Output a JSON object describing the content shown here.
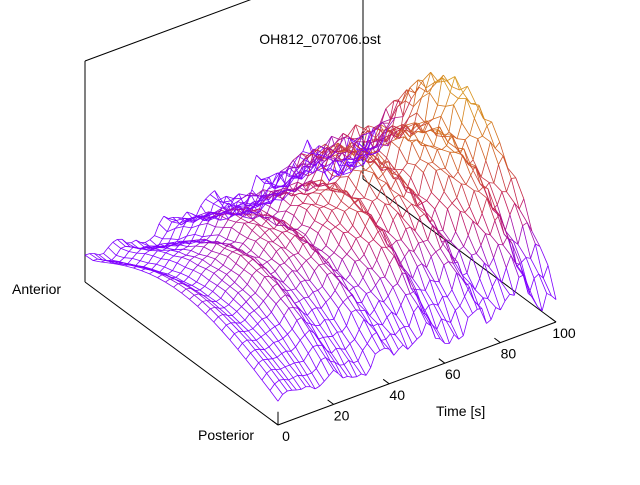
{
  "chart_data": {
    "type": "surface",
    "title": "OH812_070706.ost",
    "xlabel": "Time [s]",
    "ylabel_near": "Posterior",
    "ylabel_far": "Anterior",
    "xlim": [
      0,
      100
    ],
    "x_ticks": [
      "0",
      "20",
      "40",
      "60",
      "80",
      "100"
    ],
    "z_ticks": [],
    "grid": false,
    "colormap": [
      "#7f00ff",
      "#c2185b",
      "#d2691e",
      "#daa520"
    ],
    "surface": {
      "x_samples": 60,
      "y_samples": 24,
      "x_range": [
        0,
        100
      ],
      "y_range": [
        0,
        1
      ],
      "description": "cross-section profile rises from posterior to anterior and increases in height with time, with ripples"
    }
  }
}
